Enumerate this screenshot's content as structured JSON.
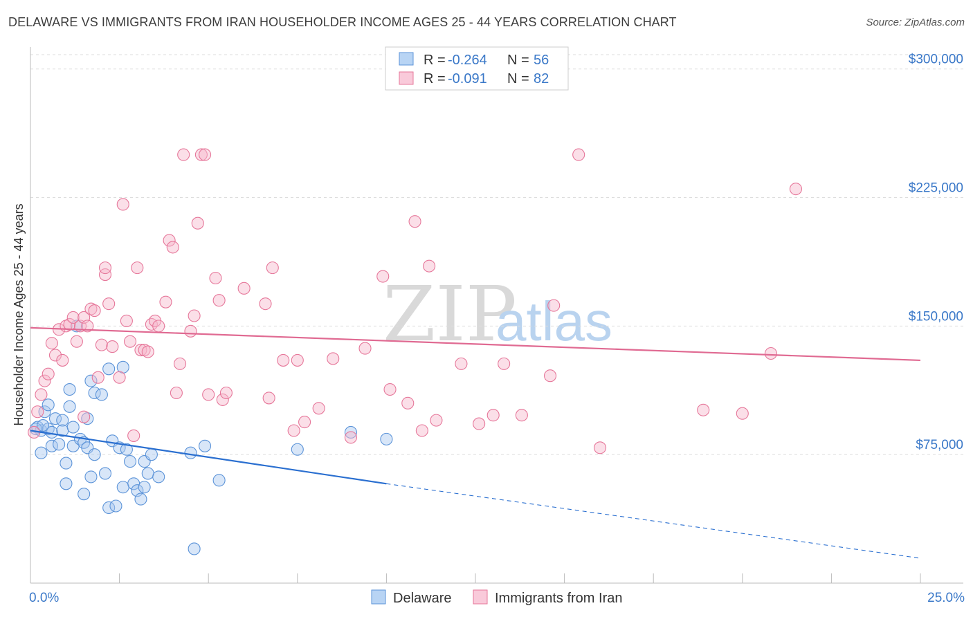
{
  "title": "DELAWARE VS IMMIGRANTS FROM IRAN HOUSEHOLDER INCOME AGES 25 - 44 YEARS CORRELATION CHART",
  "source": "Source: ZipAtlas.com",
  "watermark": {
    "zip": "ZIP",
    "atlas": "atlas"
  },
  "legend": {
    "r_label": "R =",
    "n_label": "N =",
    "rows": [
      {
        "r": "-0.264",
        "n": "56"
      },
      {
        "r": "-0.091",
        "n": "82"
      }
    ]
  },
  "chart_data": {
    "type": "scatter",
    "xlabel": "",
    "ylabel": "Householder Income Ages 25 - 44 years",
    "xlim": [
      0,
      25
    ],
    "ylim": [
      0,
      312000
    ],
    "x_tick_labels": [
      "0.0%",
      "25.0%"
    ],
    "y_ticks": [
      75000,
      150000,
      225000,
      300000
    ],
    "y_tick_labels": [
      "$75,000",
      "$150,000",
      "$225,000",
      "$300,000"
    ],
    "series": [
      {
        "name": "Delaware",
        "color": "#5b93d8",
        "fill": "#a8c8f0",
        "trend": {
          "x0": 0,
          "y0": 89000,
          "x1": 10,
          "y1": 58000,
          "dash_to_x": 25,
          "dash_to_y": 14500
        },
        "points": [
          [
            0.2,
            91000
          ],
          [
            0.3,
            89000
          ],
          [
            0.4,
            100000
          ],
          [
            0.5,
            104000
          ],
          [
            0.5,
            90000
          ],
          [
            0.6,
            88000
          ],
          [
            0.6,
            80000
          ],
          [
            0.7,
            96000
          ],
          [
            0.3,
            76000
          ],
          [
            0.8,
            81000
          ],
          [
            0.9,
            95000
          ],
          [
            0.9,
            89000
          ],
          [
            1.0,
            70000
          ],
          [
            1.0,
            58000
          ],
          [
            1.1,
            103000
          ],
          [
            1.1,
            113000
          ],
          [
            1.2,
            80000
          ],
          [
            1.2,
            91000
          ],
          [
            1.3,
            150000
          ],
          [
            1.4,
            84000
          ],
          [
            1.5,
            82000
          ],
          [
            1.5,
            52000
          ],
          [
            1.6,
            96000
          ],
          [
            1.6,
            79000
          ],
          [
            1.7,
            62000
          ],
          [
            1.7,
            118000
          ],
          [
            1.8,
            111000
          ],
          [
            1.8,
            75000
          ],
          [
            2.0,
            110000
          ],
          [
            2.1,
            64000
          ],
          [
            2.2,
            44000
          ],
          [
            2.2,
            125000
          ],
          [
            2.3,
            83000
          ],
          [
            2.4,
            45000
          ],
          [
            2.5,
            79000
          ],
          [
            2.6,
            126000
          ],
          [
            2.6,
            56000
          ],
          [
            2.7,
            78000
          ],
          [
            2.8,
            71000
          ],
          [
            2.9,
            58000
          ],
          [
            3.0,
            54000
          ],
          [
            3.1,
            49000
          ],
          [
            3.2,
            71000
          ],
          [
            3.2,
            56000
          ],
          [
            3.3,
            64000
          ],
          [
            3.4,
            75000
          ],
          [
            3.6,
            62000
          ],
          [
            4.5,
            76000
          ],
          [
            4.6,
            20000
          ],
          [
            4.9,
            80000
          ],
          [
            5.3,
            60000
          ],
          [
            7.5,
            78000
          ],
          [
            9.0,
            88000
          ],
          [
            10.0,
            84000
          ],
          [
            0.15,
            90000
          ],
          [
            0.35,
            92000
          ]
        ]
      },
      {
        "name": "Immigrants from Iran",
        "color": "#e6779a",
        "fill": "#f6b9cc",
        "trend": {
          "x0": 0,
          "y0": 149000,
          "x1": 25,
          "y1": 130000
        },
        "points": [
          [
            0.1,
            88000
          ],
          [
            0.2,
            100000
          ],
          [
            0.3,
            110000
          ],
          [
            0.4,
            118000
          ],
          [
            0.5,
            122000
          ],
          [
            0.6,
            140000
          ],
          [
            0.7,
            133000
          ],
          [
            0.8,
            148000
          ],
          [
            0.9,
            130000
          ],
          [
            1.0,
            150000
          ],
          [
            1.1,
            151000
          ],
          [
            1.2,
            155000
          ],
          [
            1.3,
            141000
          ],
          [
            1.4,
            150000
          ],
          [
            1.5,
            97000
          ],
          [
            1.5,
            155000
          ],
          [
            1.6,
            150000
          ],
          [
            1.7,
            160000
          ],
          [
            1.8,
            159000
          ],
          [
            1.9,
            120000
          ],
          [
            2.0,
            139000
          ],
          [
            2.1,
            180000
          ],
          [
            2.1,
            184000
          ],
          [
            2.2,
            163000
          ],
          [
            2.3,
            138000
          ],
          [
            2.5,
            120000
          ],
          [
            2.6,
            221000
          ],
          [
            2.7,
            153000
          ],
          [
            2.8,
            141000
          ],
          [
            2.9,
            86000
          ],
          [
            3.0,
            184000
          ],
          [
            3.1,
            136000
          ],
          [
            3.2,
            136000
          ],
          [
            3.3,
            135000
          ],
          [
            3.4,
            151000
          ],
          [
            3.5,
            153000
          ],
          [
            3.6,
            150000
          ],
          [
            3.8,
            164000
          ],
          [
            3.9,
            200000
          ],
          [
            4.0,
            196000
          ],
          [
            4.1,
            111000
          ],
          [
            4.2,
            128000
          ],
          [
            4.3,
            250000
          ],
          [
            4.5,
            147000
          ],
          [
            4.6,
            156000
          ],
          [
            4.7,
            210000
          ],
          [
            4.8,
            250000
          ],
          [
            4.9,
            250000
          ],
          [
            5.0,
            110000
          ],
          [
            5.2,
            178000
          ],
          [
            5.3,
            165000
          ],
          [
            5.4,
            107000
          ],
          [
            5.5,
            111000
          ],
          [
            6.0,
            172000
          ],
          [
            6.6,
            163000
          ],
          [
            6.7,
            108000
          ],
          [
            6.8,
            184000
          ],
          [
            7.1,
            130000
          ],
          [
            7.4,
            89000
          ],
          [
            7.5,
            130000
          ],
          [
            7.7,
            94000
          ],
          [
            8.1,
            102000
          ],
          [
            8.5,
            131000
          ],
          [
            9.0,
            85000
          ],
          [
            9.4,
            137000
          ],
          [
            9.9,
            179000
          ],
          [
            10.1,
            113000
          ],
          [
            10.6,
            105000
          ],
          [
            10.8,
            211000
          ],
          [
            11.0,
            89000
          ],
          [
            11.2,
            185000
          ],
          [
            11.4,
            95000
          ],
          [
            12.1,
            128000
          ],
          [
            12.6,
            93000
          ],
          [
            13.0,
            98000
          ],
          [
            13.3,
            128000
          ],
          [
            13.8,
            98000
          ],
          [
            14.6,
            121000
          ],
          [
            14.7,
            162000
          ],
          [
            15.4,
            250000
          ],
          [
            16.0,
            79000
          ],
          [
            18.9,
            101000
          ],
          [
            20.0,
            99000
          ],
          [
            20.8,
            134000
          ],
          [
            21.5,
            230000
          ]
        ]
      }
    ]
  }
}
